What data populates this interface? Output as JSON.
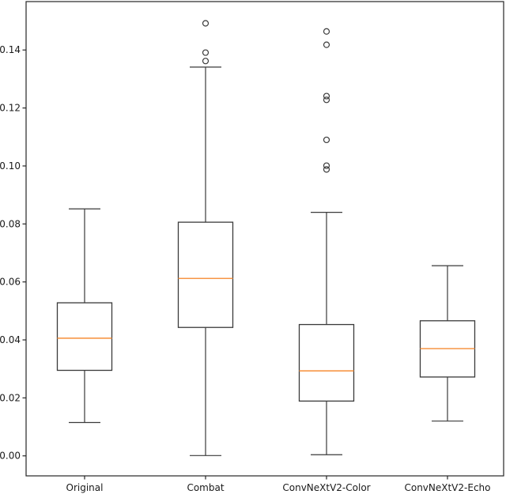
{
  "figure": {
    "background": "#ffffff"
  },
  "chart_data": {
    "type": "boxplot",
    "title": "",
    "xlabel": "",
    "ylabel": "",
    "categories": [
      "Original",
      "Combat",
      "ConvNeXtV2-Color",
      "ConvNeXtV2-Echo"
    ],
    "series": [
      {
        "name": "Original",
        "whisker_low": 0.0115,
        "q1": 0.0295,
        "median": 0.0406,
        "q3": 0.0528,
        "whisker_high": 0.0852,
        "outliers": []
      },
      {
        "name": "Combat",
        "whisker_low": 0.0001,
        "q1": 0.0443,
        "median": 0.0612,
        "q3": 0.0806,
        "whisker_high": 0.1341,
        "outliers": [
          0.1362,
          0.1391,
          0.1492
        ]
      },
      {
        "name": "ConvNeXtV2-Color",
        "whisker_low": 0.0004,
        "q1": 0.0189,
        "median": 0.0293,
        "q3": 0.0453,
        "whisker_high": 0.084,
        "outliers": [
          0.0988,
          0.1001,
          0.109,
          0.1228,
          0.1241,
          0.1418,
          0.1464
        ]
      },
      {
        "name": "ConvNeXtV2-Echo",
        "whisker_low": 0.012,
        "q1": 0.0272,
        "median": 0.037,
        "q3": 0.0466,
        "whisker_high": 0.0656,
        "outliers": []
      }
    ],
    "ytick_labels": [
      "0.00",
      "0.02",
      "0.04",
      "0.06",
      "0.08",
      "0.10",
      "0.12",
      "0.14"
    ],
    "ylim": [
      -0.0069,
      0.1567
    ],
    "grid": false,
    "legend": "none",
    "colors": {
      "box_stroke": "#3a3a3a",
      "whisker_stroke": "#3a3a3a",
      "median": "#f79646",
      "outlier_stroke": "#3a3a3a",
      "axis": "#262626",
      "tick_text": "#1a1a1a",
      "background": "#ffffff"
    }
  }
}
